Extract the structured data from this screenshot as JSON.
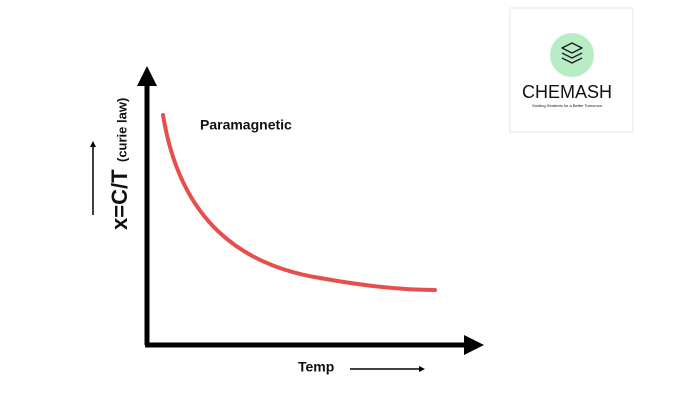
{
  "diagram": {
    "curve_label": "Paramagnetic",
    "y_label": "x=C/T",
    "y_label_note": "(curie law)",
    "x_label": "Temp"
  },
  "logo": {
    "name": "CHEMASH",
    "tagline": "Guiding Students for a Better Tomorrow"
  }
}
